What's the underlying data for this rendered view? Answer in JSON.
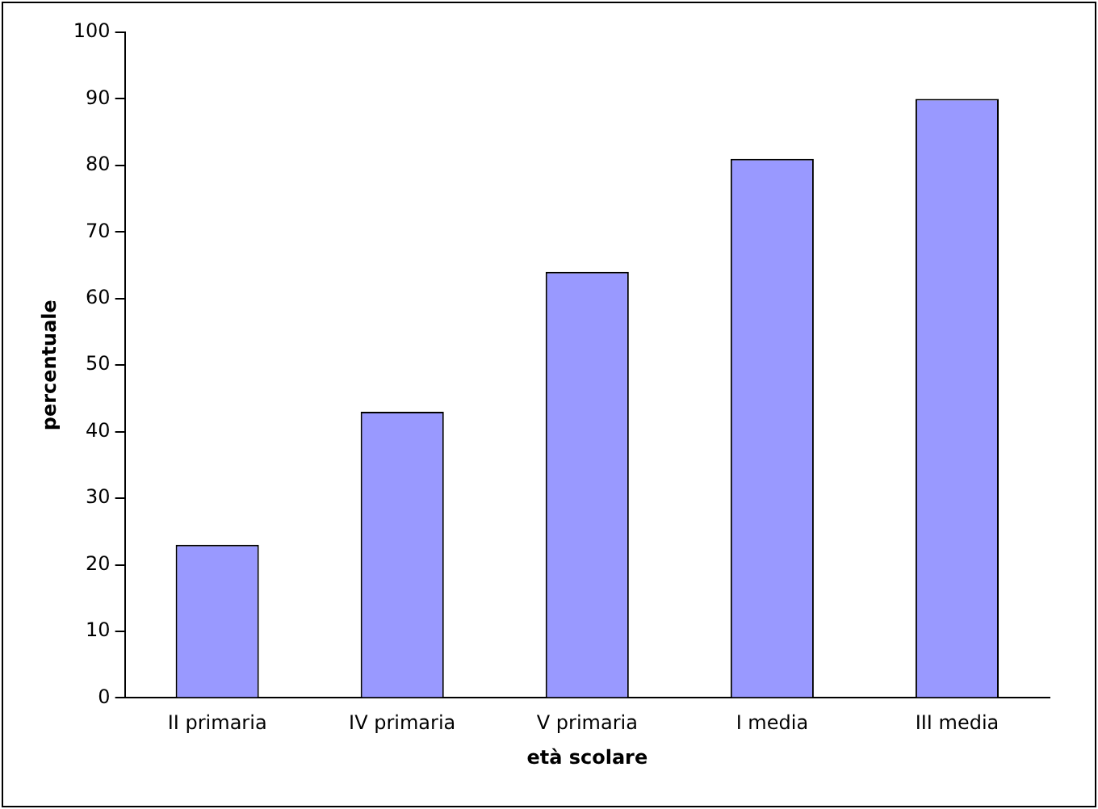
{
  "chart_data": {
    "type": "bar",
    "xlabel": "età scolare",
    "ylabel": "percentuale",
    "categories": [
      "II primaria",
      "IV primaria",
      "V primaria",
      "I media",
      "III media"
    ],
    "values": [
      23,
      43,
      64,
      81,
      90
    ],
    "color": "#9999ff",
    "ylim": [
      0,
      100
    ],
    "yticks": [
      0,
      10,
      20,
      30,
      40,
      50,
      60,
      70,
      80,
      90,
      100
    ],
    "grid": false,
    "legend": false
  }
}
